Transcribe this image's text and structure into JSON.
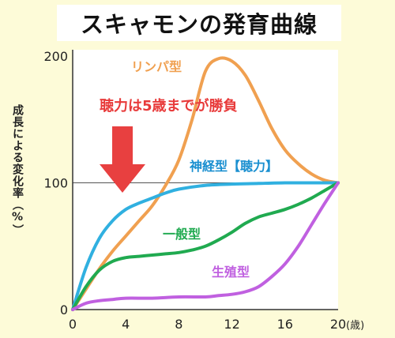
{
  "title": "スキャモンの発育曲線",
  "ylabel": "成長による変化率（%）",
  "colors": {
    "background": "#fdfbd8",
    "lymphoid": "#f0a050",
    "neural": "#30b0e0",
    "general": "#20aa50",
    "genital": "#c060e0",
    "annotation": "#e83a3a",
    "arrow": "#e84040"
  },
  "annotation": "聴力は5歳までが勝負",
  "chart_data": {
    "type": "line",
    "title": "スキャモンの発育曲線",
    "xlabel": "",
    "ylabel": "成長による変化率（%）",
    "xlim": [
      0,
      20
    ],
    "ylim": [
      0,
      205
    ],
    "x_ticks": [
      0,
      4,
      8,
      12,
      16,
      20
    ],
    "y_ticks": [
      0,
      100,
      200
    ],
    "x_unit": "(歳)",
    "reference_line_y": 100,
    "grid": false,
    "series": [
      {
        "name": "リンパ型",
        "color": "#f0a050",
        "x": [
          0,
          1,
          2,
          3,
          4,
          5,
          6,
          7,
          8,
          9,
          10,
          11,
          12,
          13,
          14,
          15,
          16,
          17,
          18,
          19,
          20
        ],
        "y": [
          0,
          16,
          32,
          46,
          58,
          70,
          82,
          98,
          118,
          150,
          188,
          198,
          196,
          185,
          165,
          143,
          126,
          115,
          107,
          102,
          100
        ]
      },
      {
        "name": "神経型【聴力】",
        "color": "#30b0e0",
        "x": [
          0,
          1,
          2,
          3,
          4,
          5,
          6,
          7,
          8,
          10,
          12,
          14,
          16,
          18,
          20
        ],
        "y": [
          0,
          33,
          56,
          70,
          79,
          84,
          88,
          92,
          95,
          98,
          99,
          99.5,
          100,
          100,
          100
        ]
      },
      {
        "name": "一般型",
        "color": "#20aa50",
        "x": [
          0,
          1,
          2,
          3,
          4,
          5,
          6,
          7,
          8,
          9,
          10,
          11,
          12,
          13,
          14,
          15,
          16,
          17,
          18,
          19,
          20
        ],
        "y": [
          0,
          18,
          31,
          38,
          41,
          42,
          43,
          44,
          45,
          47,
          50,
          55,
          61,
          68,
          73,
          76,
          79,
          83,
          88,
          94,
          100
        ]
      },
      {
        "name": "生殖型",
        "color": "#c060e0",
        "x": [
          0,
          1,
          2,
          3,
          4,
          6,
          8,
          10,
          11,
          12,
          13,
          14,
          15,
          16,
          17,
          18,
          19,
          20
        ],
        "y": [
          0,
          5,
          7,
          8,
          9,
          9,
          10,
          10,
          11,
          12,
          14,
          18,
          26,
          36,
          50,
          67,
          84,
          100
        ]
      }
    ]
  }
}
